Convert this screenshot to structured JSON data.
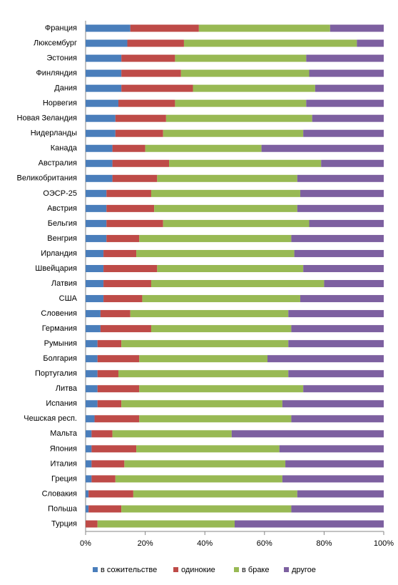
{
  "chart_data": {
    "type": "stacked-barh",
    "categories": [
      "Франция",
      "Люксембург",
      "Эстония",
      "Финляндия",
      "Дания",
      "Норвегия",
      "Новая Зеландия",
      "Нидерланды",
      "Канада",
      "Австралия",
      "Великобритания",
      "ОЭСР-25",
      "Австрия",
      "Бельгия",
      "Венгрия",
      "Ирландия",
      "Швейцария",
      "Латвия",
      "США",
      "Словения",
      "Германия",
      "Румыния",
      "Болгария",
      "Португалия",
      "Литва",
      "Испания",
      "Чешская респ.",
      "Мальта",
      "Япония",
      "Италия",
      "Греция",
      "Словакия",
      "Польша",
      "Турция"
    ],
    "series": [
      {
        "name": "в сожительстве",
        "color": "#4a7ebb",
        "values": [
          15,
          14,
          12,
          12,
          12,
          11,
          10,
          10,
          9,
          9,
          9,
          7,
          7,
          7,
          7,
          6,
          6,
          6,
          6,
          5,
          5,
          4,
          4,
          4,
          4,
          4,
          3,
          2,
          2,
          2,
          2,
          1,
          1,
          0
        ]
      },
      {
        "name": "одинокие",
        "color": "#be4b48",
        "values": [
          23,
          19,
          18,
          20,
          24,
          19,
          17,
          16,
          11,
          19,
          15,
          15,
          16,
          19,
          11,
          11,
          18,
          16,
          13,
          10,
          17,
          8,
          14,
          7,
          14,
          8,
          15,
          7,
          15,
          11,
          8,
          15,
          11,
          4
        ]
      },
      {
        "name": "в браке",
        "color": "#98b954",
        "values": [
          44,
          58,
          44,
          43,
          41,
          44,
          49,
          47,
          39,
          51,
          47,
          50,
          48,
          49,
          51,
          53,
          49,
          58,
          53,
          53,
          47,
          56,
          43,
          57,
          55,
          54,
          51,
          40,
          48,
          54,
          56,
          55,
          57,
          46
        ]
      },
      {
        "name": "другое",
        "color": "#7d60a0",
        "values": [
          18,
          9,
          26,
          25,
          23,
          26,
          24,
          27,
          41,
          21,
          29,
          28,
          29,
          25,
          31,
          30,
          27,
          20,
          28,
          32,
          31,
          32,
          39,
          32,
          27,
          34,
          31,
          51,
          35,
          33,
          34,
          29,
          31,
          50
        ]
      }
    ],
    "xlim": [
      0,
      100
    ],
    "xticks": [
      {
        "value": 0,
        "label": "0%"
      },
      {
        "value": 20,
        "label": "20%"
      },
      {
        "value": 40,
        "label": "40%"
      },
      {
        "value": 60,
        "label": "60%"
      },
      {
        "value": 80,
        "label": "80%"
      },
      {
        "value": 100,
        "label": "100%"
      }
    ],
    "legend": "bottom"
  }
}
